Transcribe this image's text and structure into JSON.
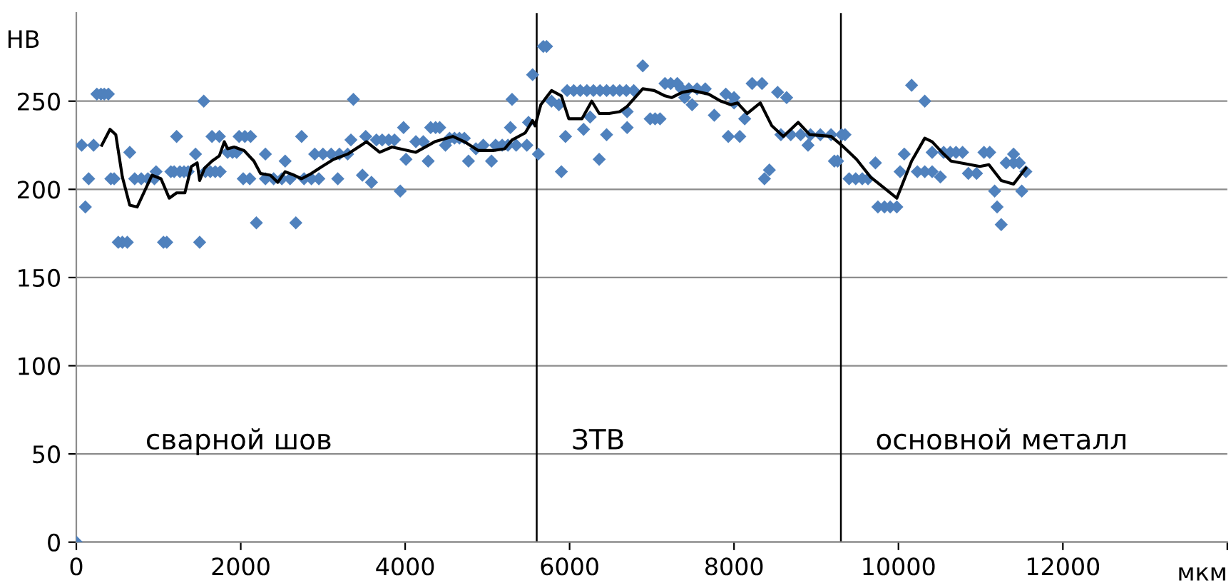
{
  "chart_data": {
    "type": "scatter",
    "ylabel": "HB",
    "xlabel": "мкм",
    "xlim": [
      0,
      14000
    ],
    "ylim": [
      0,
      300
    ],
    "xticks": [
      0,
      2000,
      4000,
      6000,
      8000,
      10000,
      12000,
      {
        "value": 14000,
        "label": null
      }
    ],
    "yticks": [
      0,
      50,
      100,
      150,
      200,
      250
    ],
    "grid": "y",
    "marker": "diamond",
    "annotations": [
      "сварной шов",
      "ЗТВ",
      "основной металл"
    ],
    "ref_lines": [
      {
        "axis": "x",
        "value": 5600,
        "color": "#000000"
      },
      {
        "axis": "x",
        "value": 9300,
        "color": "#000000"
      }
    ],
    "series": [
      {
        "color": "#4f81bd",
        "x": [
          0,
          65,
          110,
          150,
          210,
          250,
          300,
          340,
          390,
          420,
          460,
          510,
          560,
          620,
          650,
          710,
          790,
          870,
          950,
          970,
          1060,
          1100,
          1150,
          1190,
          1220,
          1260,
          1310,
          1360,
          1450,
          1500,
          1550,
          1570,
          1630,
          1690,
          1750,
          1650,
          1740,
          1840,
          1900,
          1950,
          1980,
          2050,
          2120,
          2030,
          2110,
          2190,
          2300,
          2300,
          2400,
          2500,
          2600,
          2540,
          2670,
          2740,
          2770,
          2860,
          2950,
          2900,
          3000,
          3100,
          3200,
          3300,
          3180,
          3340,
          3370,
          3480,
          3520,
          3590,
          3650,
          3720,
          3800,
          3870,
          3940,
          3980,
          4010,
          4130,
          4220,
          4280,
          4310,
          4370,
          4420,
          4490,
          4540,
          4600,
          4660,
          4720,
          4770,
          4860,
          4950,
          5050,
          5100,
          5180,
          5250,
          5280,
          5300,
          5350,
          5480,
          5500,
          5550,
          5620,
          5680,
          5720,
          5780,
          5870,
          5900,
          5950,
          5970,
          6050,
          6130,
          6210,
          6290,
          6370,
          6450,
          6530,
          6610,
          6690,
          6780,
          6170,
          6250,
          6360,
          6450,
          6700,
          6700,
          6890,
          6980,
          7040,
          7100,
          7160,
          7230,
          7310,
          7400,
          7490,
          7360,
          7450,
          7550,
          7650,
          7760,
          7900,
          7930,
          8000,
          8000,
          8070,
          8130,
          8220,
          8340,
          8370,
          8430,
          8530,
          8640,
          8570,
          8690,
          8810,
          8930,
          9050,
          9180,
          9310,
          8900,
          9260,
          9350,
          9220,
          9400,
          9480,
          9560,
          9630,
          9720,
          9750,
          9830,
          9900,
          9980,
          10020,
          10070,
          10160,
          10230,
          10320,
          10410,
          10320,
          10410,
          10510,
          10550,
          10630,
          10700,
          10780,
          10850,
          10950,
          11040,
          11110,
          11170,
          11200,
          11250,
          11310,
          11400,
          11470,
          11400,
          11500,
          11550
        ],
        "values": [
          0,
          225,
          190,
          206,
          225,
          254,
          254,
          254,
          254,
          206,
          206,
          170,
          170,
          170,
          221,
          206,
          206,
          206,
          206,
          210,
          170,
          170,
          210,
          210,
          230,
          210,
          210,
          210,
          220,
          170,
          250,
          210,
          210,
          210,
          210,
          230,
          230,
          221,
          221,
          221,
          230,
          230,
          230,
          206,
          206,
          181,
          220,
          206,
          206,
          206,
          206,
          216,
          181,
          230,
          206,
          206,
          206,
          220,
          220,
          220,
          220,
          220,
          206,
          228,
          251,
          208,
          230,
          204,
          228,
          228,
          228,
          228,
          199,
          235,
          217,
          227,
          227,
          216,
          235,
          235,
          235,
          225,
          229,
          229,
          229,
          229,
          216,
          223,
          225,
          216,
          225,
          225,
          225,
          235,
          251,
          225,
          225,
          238,
          265,
          220,
          281,
          281,
          250,
          248,
          210,
          230,
          256,
          256,
          256,
          256,
          256,
          256,
          256,
          256,
          256,
          256,
          256,
          234,
          241,
          217,
          231,
          244,
          235,
          270,
          240,
          240,
          240,
          260,
          260,
          260,
          252,
          248,
          257,
          257,
          257,
          257,
          242,
          254,
          230,
          252,
          249,
          230,
          240,
          260,
          260,
          206,
          211,
          255,
          252,
          231,
          231,
          231,
          231,
          231,
          231,
          231,
          225,
          216,
          231,
          216,
          206,
          206,
          206,
          206,
          215,
          190,
          190,
          190,
          190,
          210,
          220,
          259,
          210,
          210,
          210,
          250,
          221,
          207,
          221,
          221,
          221,
          221,
          209,
          209,
          221,
          221,
          199,
          190,
          180,
          215,
          215,
          215,
          220,
          199,
          210
        ]
      },
      {
        "type": "line",
        "color": "#000000",
        "marker": "none",
        "x": [
          310,
          410,
          480,
          560,
          650,
          740,
          830,
          920,
          1030,
          1130,
          1220,
          1320,
          1400,
          1470,
          1500,
          1560,
          1650,
          1740,
          1800,
          1840,
          1920,
          2040,
          2160,
          2240,
          2360,
          2450,
          2540,
          2650,
          2740,
          2860,
          2990,
          3130,
          3300,
          3530,
          3690,
          3840,
          4130,
          4360,
          4580,
          4720,
          4890,
          5070,
          5210,
          5300,
          5460,
          5550,
          5580,
          5650,
          5780,
          5900,
          5990,
          6150,
          6270,
          6360,
          6480,
          6610,
          6700,
          6890,
          7030,
          7160,
          7240,
          7370,
          7490,
          7690,
          7840,
          7960,
          8040,
          8160,
          8320,
          8460,
          8600,
          8780,
          8920,
          9180,
          9310,
          9490,
          9660,
          9980,
          10160,
          10320,
          10410,
          10530,
          10640,
          10990,
          11100,
          11250,
          11400,
          11550
        ],
        "values": [
          225,
          234,
          231,
          207,
          191,
          190,
          199,
          208,
          206,
          195,
          198,
          198,
          213,
          215,
          205,
          212,
          216,
          219,
          227,
          223,
          224,
          222,
          216,
          209,
          208,
          204,
          210,
          208,
          206,
          209,
          213,
          217,
          220,
          227,
          221,
          224,
          221,
          227,
          230,
          227,
          222,
          222,
          223,
          228,
          232,
          239,
          236,
          248,
          256,
          253,
          240,
          240,
          250,
          243,
          243,
          244,
          247,
          257,
          256,
          253,
          252,
          255,
          256,
          254,
          250,
          248,
          249,
          243,
          249,
          236,
          230,
          238,
          231,
          230,
          225,
          217,
          207,
          195,
          216,
          229,
          227,
          221,
          216,
          213,
          214,
          205,
          203,
          212
        ]
      }
    ]
  }
}
